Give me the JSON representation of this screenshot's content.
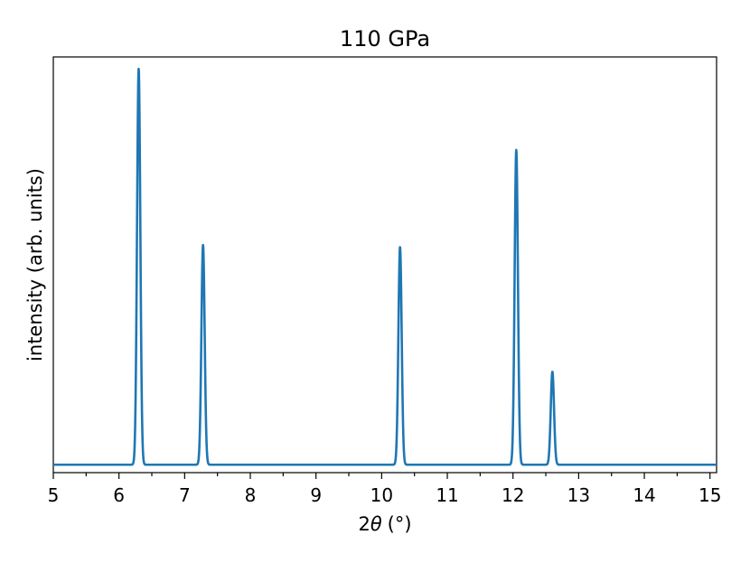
{
  "chart_data": {
    "type": "line",
    "title": "110 GPa",
    "xlabel_prefix": "2",
    "xlabel_symbol": "θ",
    "xlabel_unit": "(°)",
    "ylabel": "intensity (arb. units)",
    "xlim": [
      5.0,
      15.1
    ],
    "ylim": [
      -0.02,
      1.03
    ],
    "xticks_major": [
      5,
      6,
      7,
      8,
      9,
      10,
      11,
      12,
      13,
      14,
      15
    ],
    "xticks_minor": [
      5.5,
      6.5,
      7.5,
      8.5,
      9.5,
      10.5,
      11.5,
      12.5,
      13.5,
      14.5
    ],
    "yticks": [],
    "grid": false,
    "legend": "none",
    "baseline": 0.0,
    "peak_width": 0.025,
    "series": [
      {
        "color": "#1f77b4",
        "peaks": [
          {
            "x": 6.3,
            "y": 1.0
          },
          {
            "x": 7.28,
            "y": 0.555
          },
          {
            "x": 10.28,
            "y": 0.55
          },
          {
            "x": 12.05,
            "y": 0.795
          },
          {
            "x": 12.6,
            "y": 0.235
          }
        ]
      }
    ]
  }
}
